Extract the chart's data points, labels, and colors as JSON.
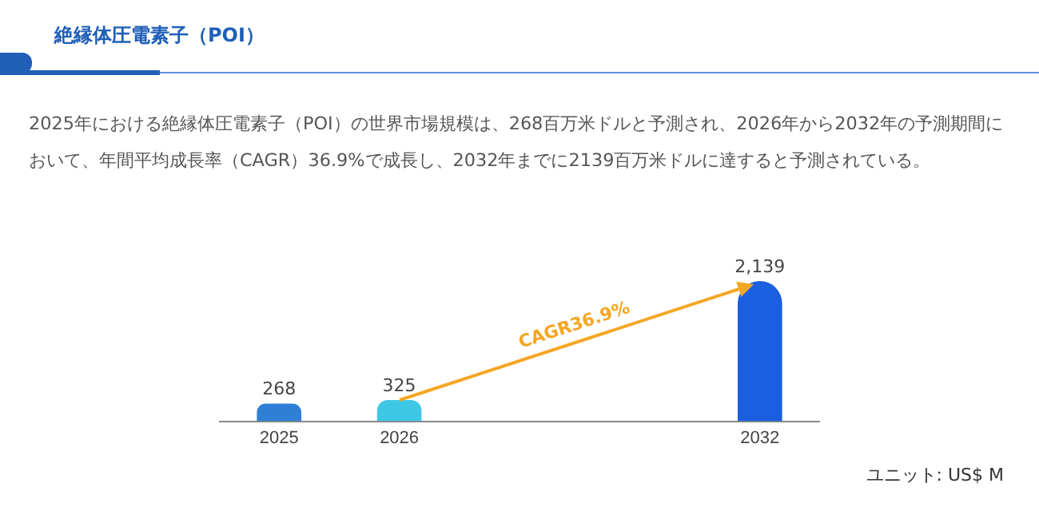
{
  "chart_data": {
    "type": "bar",
    "title": "絶縁体圧電素子（POI）",
    "subtitle": "2025年における絶縁体圧電素子（POI）の世界市場規模は、268百万米ドルと予測され、2026年から2032年の予測期間において、年間平均成長率（CAGR）36.9%で成長し、2032年までに2139百万米ドルに達すると予測されている。",
    "categories": [
      "2025",
      "2026",
      null,
      null,
      "2032"
    ],
    "values": [
      268,
      325,
      null,
      null,
      2139
    ],
    "colors": [
      "#2f7fd6",
      "#3ec8e6",
      "#1a5fe0",
      "#1a5fe0",
      "#1a5fe0"
    ],
    "value_labels": [
      "268",
      "325",
      null,
      null,
      "2,139"
    ],
    "annotations": [
      "CAGR36.9%",
      "ユニット: US$ M"
    ],
    "grid": false,
    "legend": false
  }
}
